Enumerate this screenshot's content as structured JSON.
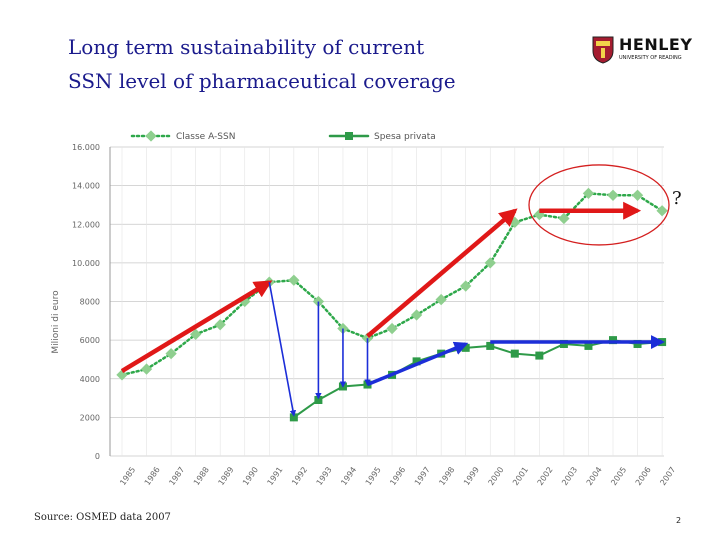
{
  "slide": {
    "title_line1": "Long term sustainability of current",
    "title_line2": "SSN level of pharmaceutical coverage",
    "source": "Source: OSMED data 2007",
    "page_number": "2"
  },
  "logo": {
    "name": "HENLEY",
    "subtitle": "UNIVERSITY OF READING"
  },
  "annotation": {
    "question_mark": "?"
  },
  "colors": {
    "series_a": "#8fcf8f",
    "series_a_line": "#2ea84a",
    "series_b": "#2e9a48",
    "arrow_red": "#e01818",
    "arrow_blue": "#1c2ed8",
    "ellipse": "#d42020",
    "title": "#1a1a8c"
  },
  "chart_data": {
    "type": "line",
    "ylabel": "Milioni di euro",
    "xlabel": "",
    "ylim": [
      0,
      16000
    ],
    "yticks": [
      0,
      2000,
      4000,
      6000,
      8000,
      10000,
      12000,
      14000,
      16000
    ],
    "ytick_labels": [
      "0",
      "2000",
      "4000",
      "6000",
      "8000",
      "10.000",
      "12.000",
      "14.000",
      "16.000"
    ],
    "grid": true,
    "legend_position": "top",
    "categories": [
      "1985",
      "1986",
      "1987",
      "1988",
      "1989",
      "1990",
      "1991",
      "1992",
      "1993",
      "1994",
      "1995",
      "1996",
      "1997",
      "1998",
      "1999",
      "2000",
      "2001",
      "2002",
      "2003",
      "2004",
      "2005",
      "2006",
      "2007"
    ],
    "series": [
      {
        "name": "Classe A-SSN",
        "style": "dotted",
        "values": [
          4200,
          4500,
          5300,
          6300,
          6800,
          8000,
          9000,
          9100,
          8000,
          6600,
          6100,
          6600,
          7300,
          8100,
          8800,
          10000,
          12100,
          12500,
          12300,
          13600,
          13500,
          13500,
          12700
        ]
      },
      {
        "name": "Spesa privata",
        "style": "solid",
        "values": [
          null,
          null,
          null,
          null,
          null,
          null,
          null,
          2000,
          2900,
          3600,
          3700,
          4200,
          4900,
          5300,
          5600,
          5700,
          5300,
          5200,
          5800,
          5700,
          6000,
          5800,
          5900
        ]
      }
    ],
    "arrows": [
      {
        "color": "red",
        "from": [
          "1985",
          4400
        ],
        "to": [
          "1991",
          9000
        ]
      },
      {
        "color": "red",
        "from": [
          "1995",
          6200
        ],
        "to": [
          "2001",
          12700
        ]
      },
      {
        "color": "red",
        "from": [
          "2002",
          12700
        ],
        "to": [
          "2006",
          12700
        ]
      },
      {
        "color": "blue",
        "from": [
          "1991",
          9000
        ],
        "to": [
          "1992",
          2100
        ]
      },
      {
        "color": "blue",
        "from": [
          "1993",
          8000
        ],
        "to": [
          "1993",
          3000
        ]
      },
      {
        "color": "blue",
        "from": [
          "1994",
          6600
        ],
        "to": [
          "1994",
          3600
        ]
      },
      {
        "color": "blue",
        "from": [
          "1995",
          6100
        ],
        "to": [
          "1995",
          3700
        ]
      },
      {
        "color": "blue",
        "from": [
          "1995",
          3700
        ],
        "to": [
          "1999",
          5800
        ]
      },
      {
        "color": "blue",
        "from": [
          "2000",
          5900
        ],
        "to": [
          "2007",
          5900
        ]
      }
    ]
  }
}
